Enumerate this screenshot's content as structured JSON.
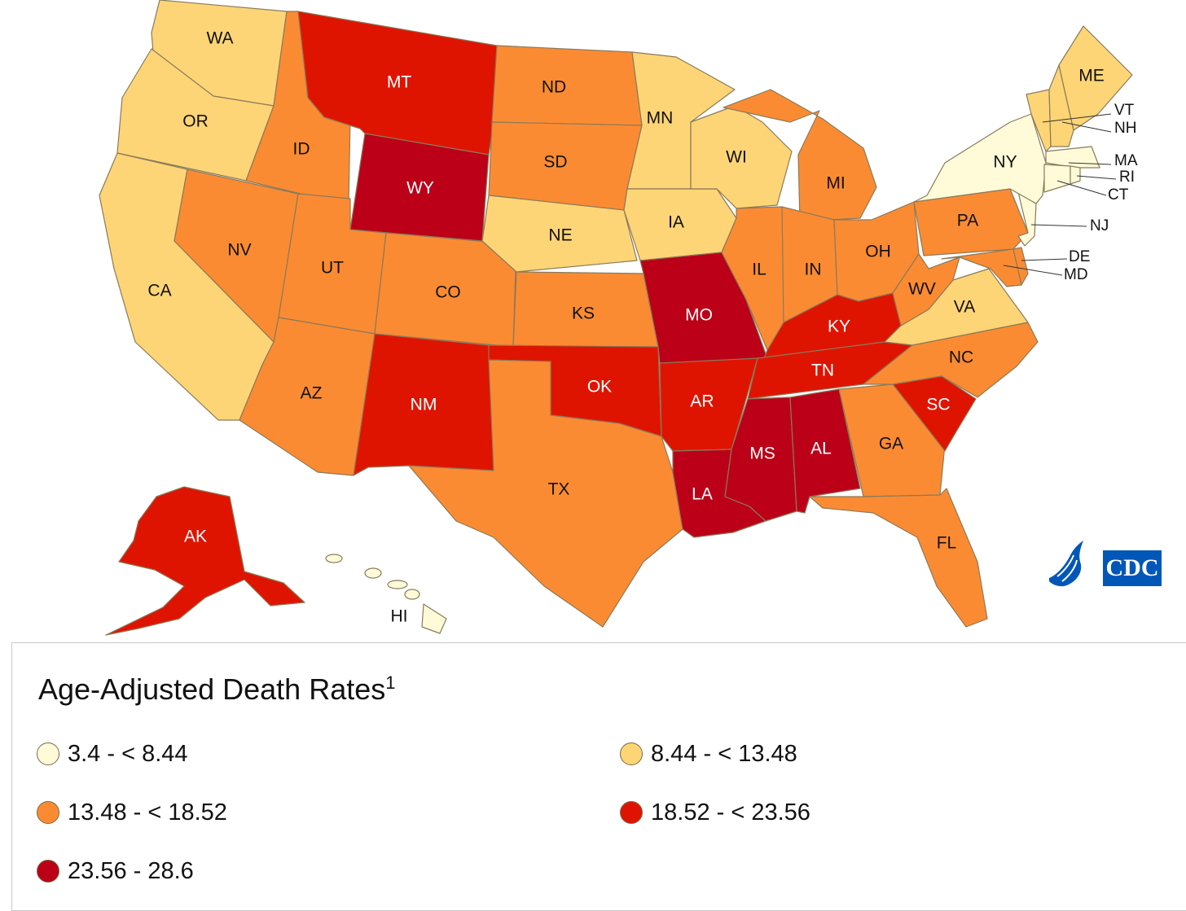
{
  "colors": {
    "bin1": "#fffbd9",
    "bin2": "#fdd576",
    "bin3": "#fb8b32",
    "bin4": "#df1400",
    "bin5": "#bb0018",
    "border": "#8a7a5a",
    "cdc_blue": "#0057b8"
  },
  "legend": {
    "title": "Age-Adjusted Death Rates",
    "footnote": "1",
    "items": [
      {
        "label": "3.4 - < 8.44",
        "color": "#fffbd9"
      },
      {
        "label": "8.44 - < 13.48",
        "color": "#fdd576"
      },
      {
        "label": "13.48 - < 18.52",
        "color": "#fb8b32"
      },
      {
        "label": "18.52 - < 23.56",
        "color": "#df1400"
      },
      {
        "label": "23.56 - 28.6",
        "color": "#bb0018"
      }
    ]
  },
  "logo": {
    "text": "CDC",
    "icon": "hhs-eagle-icon"
  },
  "states": {
    "WA": {
      "label": "WA",
      "bin": 2
    },
    "OR": {
      "label": "OR",
      "bin": 2
    },
    "CA": {
      "label": "CA",
      "bin": 2
    },
    "ID": {
      "label": "ID",
      "bin": 3
    },
    "NV": {
      "label": "NV",
      "bin": 3
    },
    "MT": {
      "label": "MT",
      "bin": 4
    },
    "WY": {
      "label": "WY",
      "bin": 5
    },
    "UT": {
      "label": "UT",
      "bin": 3
    },
    "AZ": {
      "label": "AZ",
      "bin": 3
    },
    "CO": {
      "label": "CO",
      "bin": 3
    },
    "NM": {
      "label": "NM",
      "bin": 4
    },
    "ND": {
      "label": "ND",
      "bin": 3
    },
    "SD": {
      "label": "SD",
      "bin": 3
    },
    "NE": {
      "label": "NE",
      "bin": 2
    },
    "KS": {
      "label": "KS",
      "bin": 3
    },
    "OK": {
      "label": "OK",
      "bin": 4
    },
    "TX": {
      "label": "TX",
      "bin": 3
    },
    "MN": {
      "label": "MN",
      "bin": 2
    },
    "IA": {
      "label": "IA",
      "bin": 2
    },
    "MO": {
      "label": "MO",
      "bin": 5
    },
    "AR": {
      "label": "AR",
      "bin": 4
    },
    "LA": {
      "label": "LA",
      "bin": 5
    },
    "WI": {
      "label": "WI",
      "bin": 2
    },
    "IL": {
      "label": "IL",
      "bin": 3
    },
    "MI": {
      "label": "MI",
      "bin": 3
    },
    "IN": {
      "label": "IN",
      "bin": 3
    },
    "OH": {
      "label": "OH",
      "bin": 3
    },
    "KY": {
      "label": "KY",
      "bin": 4
    },
    "TN": {
      "label": "TN",
      "bin": 4
    },
    "MS": {
      "label": "MS",
      "bin": 5
    },
    "AL": {
      "label": "AL",
      "bin": 5
    },
    "GA": {
      "label": "GA",
      "bin": 3
    },
    "FL": {
      "label": "FL",
      "bin": 3
    },
    "SC": {
      "label": "SC",
      "bin": 4
    },
    "NC": {
      "label": "NC",
      "bin": 3
    },
    "VA": {
      "label": "VA",
      "bin": 2
    },
    "WV": {
      "label": "WV",
      "bin": 3
    },
    "PA": {
      "label": "PA",
      "bin": 3
    },
    "NY": {
      "label": "NY",
      "bin": 1
    },
    "NJ": {
      "label": "NJ",
      "bin": 1
    },
    "DE": {
      "label": "DE",
      "bin": 3
    },
    "MD": {
      "label": "MD",
      "bin": 3
    },
    "ME": {
      "label": "ME",
      "bin": 2
    },
    "VT": {
      "label": "VT",
      "bin": 2
    },
    "NH": {
      "label": "NH",
      "bin": 2
    },
    "MA": {
      "label": "MA",
      "bin": 1
    },
    "RI": {
      "label": "RI",
      "bin": 1
    },
    "CT": {
      "label": "CT",
      "bin": 1
    },
    "AK": {
      "label": "AK",
      "bin": 4
    },
    "HI": {
      "label": "HI",
      "bin": 1
    }
  }
}
